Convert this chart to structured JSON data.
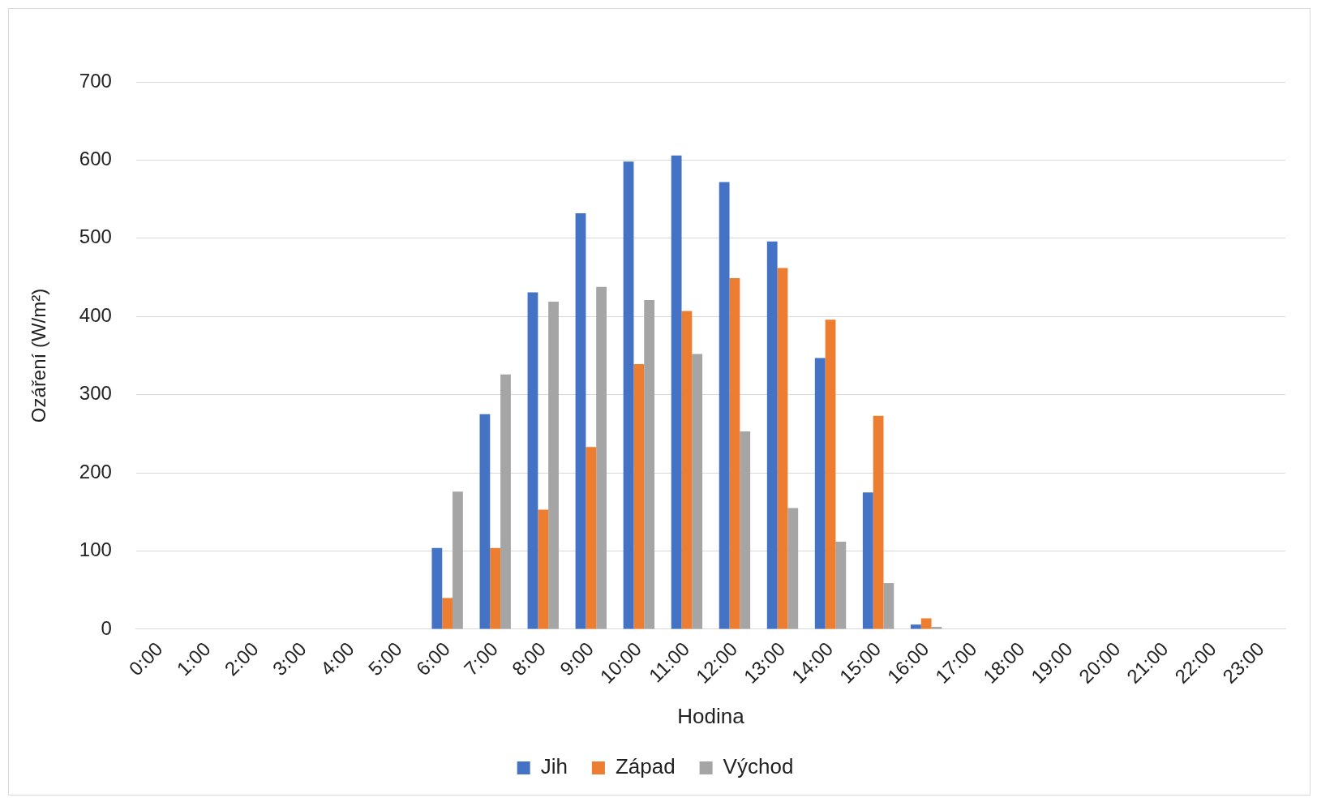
{
  "chart_data": {
    "type": "bar",
    "xlabel": "Hodina",
    "ylabel": "Ozáření (W/m²)",
    "categories": [
      "0:00",
      "1:00",
      "2:00",
      "3:00",
      "4:00",
      "5:00",
      "6:00",
      "7:00",
      "8:00",
      "9:00",
      "10:00",
      "11:00",
      "12:00",
      "13:00",
      "14:00",
      "15:00",
      "16:00",
      "17:00",
      "18:00",
      "19:00",
      "20:00",
      "21:00",
      "22:00",
      "23:00"
    ],
    "series": [
      {
        "name": "Jih",
        "color": "#4472c4",
        "values": [
          0,
          0,
          0,
          0,
          0,
          0,
          104,
          275,
          431,
          532,
          598,
          606,
          572,
          496,
          347,
          175,
          6,
          0,
          0,
          0,
          0,
          0,
          0,
          0
        ]
      },
      {
        "name": "Západ",
        "color": "#ed7d31",
        "values": [
          0,
          0,
          0,
          0,
          0,
          0,
          40,
          104,
          153,
          233,
          339,
          407,
          449,
          462,
          396,
          273,
          14,
          0,
          0,
          0,
          0,
          0,
          0,
          0
        ]
      },
      {
        "name": "Východ",
        "color": "#a5a5a5",
        "values": [
          0,
          0,
          0,
          0,
          0,
          0,
          176,
          326,
          419,
          438,
          421,
          352,
          253,
          155,
          112,
          59,
          3,
          0,
          0,
          0,
          0,
          0,
          0,
          0
        ]
      }
    ],
    "ylim": [
      0,
      700
    ],
    "yticks": [
      0,
      100,
      200,
      300,
      400,
      500,
      600,
      700
    ],
    "grid": "y",
    "legend": "bottom"
  }
}
